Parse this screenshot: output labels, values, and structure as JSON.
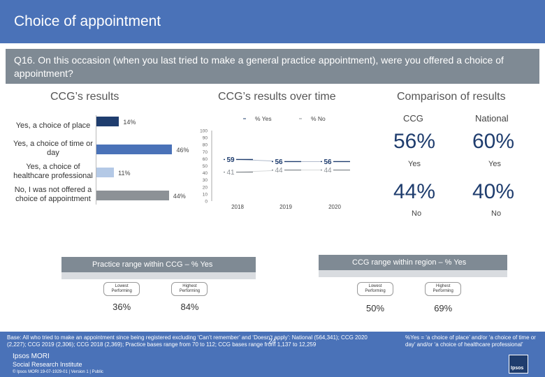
{
  "header": {
    "title": "Choice of appointment"
  },
  "question": {
    "text": "Q16. On this occasion (when you last tried to make a general practice appointment), were you offered a choice of appointment?"
  },
  "ccg_results": {
    "title": "CCG’s results",
    "bars": [
      {
        "label": "Yes, a choice of place",
        "value": 14,
        "value_label": "14%",
        "color": "#1f3d6e"
      },
      {
        "label": "Yes, a choice of time or day",
        "value": 46,
        "value_label": "46%",
        "color": "#4a72b8"
      },
      {
        "label": "Yes, a choice of healthcare professional",
        "value": 11,
        "value_label": "11%",
        "color": "#b4c9e6"
      },
      {
        "label": "No, I was not offered a choice of appointment",
        "value": 44,
        "value_label": "44%",
        "color": "#8c9196"
      }
    ]
  },
  "chart_data": {
    "type": "line",
    "title": "CCG’s results over time",
    "x": [
      "2018",
      "2019",
      "2020"
    ],
    "ylim": [
      0,
      100
    ],
    "yticks": [
      "0",
      "10",
      "20",
      "30",
      "40",
      "50",
      "60",
      "70",
      "80",
      "90",
      "100"
    ],
    "series": [
      {
        "name": "% Yes",
        "values": [
          59,
          56,
          56
        ],
        "labels": [
          "59",
          "56",
          "56"
        ],
        "color": "#1f3d6e"
      },
      {
        "name": "% No",
        "values": [
          41,
          44,
          44
        ],
        "labels": [
          "41",
          "44",
          "44"
        ],
        "color": "#8c9196"
      }
    ]
  },
  "comparison": {
    "title": "Comparison of results",
    "col_ccg": "CCG",
    "col_national": "National",
    "yes_ccg": "56%",
    "yes_national": "60%",
    "yes_label": "Yes",
    "no_ccg": "44%",
    "no_national": "40%",
    "no_label": "No"
  },
  "practice_range": {
    "title": "Practice range within CCG – % Yes",
    "lowest_label": "Lowest Performing",
    "highest_label": "Highest Performing",
    "lowest_value": "36%",
    "highest_value": "84%",
    "lowest_frac": 0.36,
    "highest_frac": 0.84
  },
  "ccg_range": {
    "title": "CCG range within region – % Yes",
    "lowest_label": "Lowest Performing",
    "highest_label": "Highest Performing",
    "lowest_value": "50%",
    "highest_value": "69%",
    "lowest_frac": 0.5,
    "highest_frac": 0.69
  },
  "footer": {
    "base": "Base: All who tried to make an appointment since being registered excluding ‘Can’t remember’ and ‘Doesn’t apply’: National (564,341); CCG 2020 (2,227); CCG 2019 (2,306); CCG 2018 (2,369); Practice bases range from 70 to 112; CCG bases range from 1,137 to 12,259",
    "note": "%Yes = ‘a choice of place’ and/or ‘a choice of time or day’ and/or ‘a choice of healthcare professional’",
    "page": "24",
    "brand_1": "Ipsos MORI",
    "brand_2": "Social Research Institute",
    "copyright": "© Ipsos MORI     19-07-1929-01 | Version 1 | Public",
    "logo": "Ipsos"
  }
}
